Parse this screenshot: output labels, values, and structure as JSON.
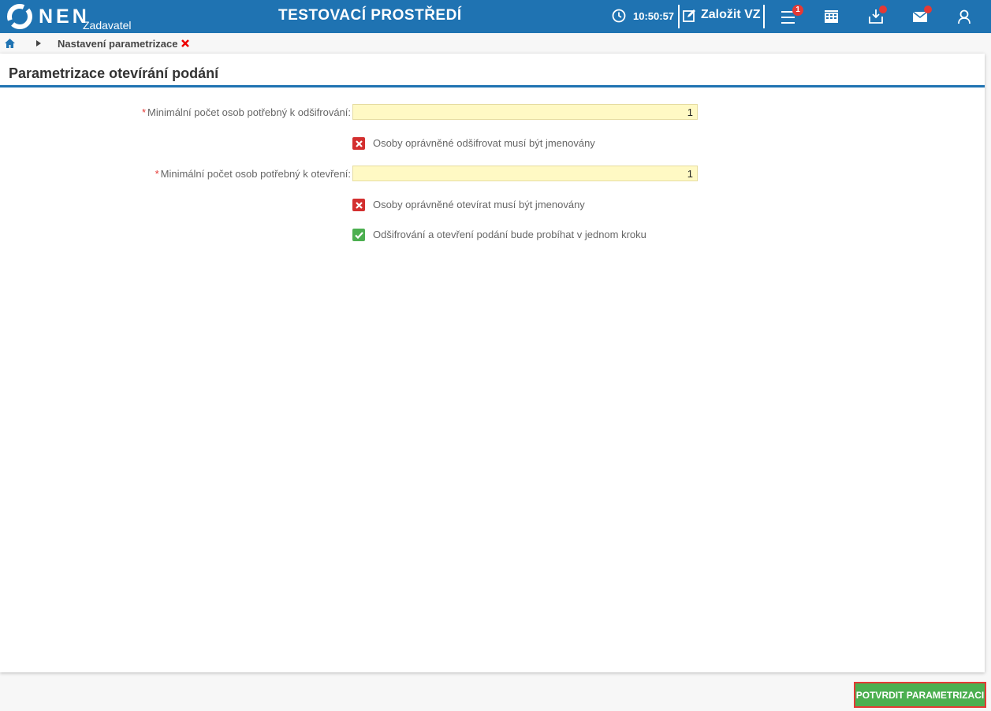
{
  "header": {
    "brand": "NEN",
    "role": "Zadavatel",
    "environment": "TESTOVACÍ PROSTŘEDÍ",
    "time": "10:50:57",
    "new_vz_label": "Založit VZ",
    "menu_badge": "1",
    "colors": {
      "primary": "#1f73b2",
      "badge": "#e53935"
    }
  },
  "breadcrumb": {
    "current": "Nastavení parametrizace"
  },
  "panel": {
    "title": "Parametrizace otevírání podání"
  },
  "form": {
    "field1": {
      "label": "Minimální počet osob potřebný k odšifrování:",
      "value": "1",
      "required": true
    },
    "check1": {
      "label": "Osoby oprávněné odšifrovat musí být jmenovány",
      "checked": false
    },
    "field2": {
      "label": "Minimální počet osob potřebný k otevření:",
      "value": "1",
      "required": true
    },
    "check2": {
      "label": "Osoby oprávněné otevírat musí být jmenovány",
      "checked": false
    },
    "check3": {
      "label": "Odšifrování a otevření podání bude probíhat v jednom kroku",
      "checked": true
    },
    "required_mark": "*"
  },
  "footer": {
    "confirm_label": "POTVRDIT PARAMETRIZACI"
  }
}
